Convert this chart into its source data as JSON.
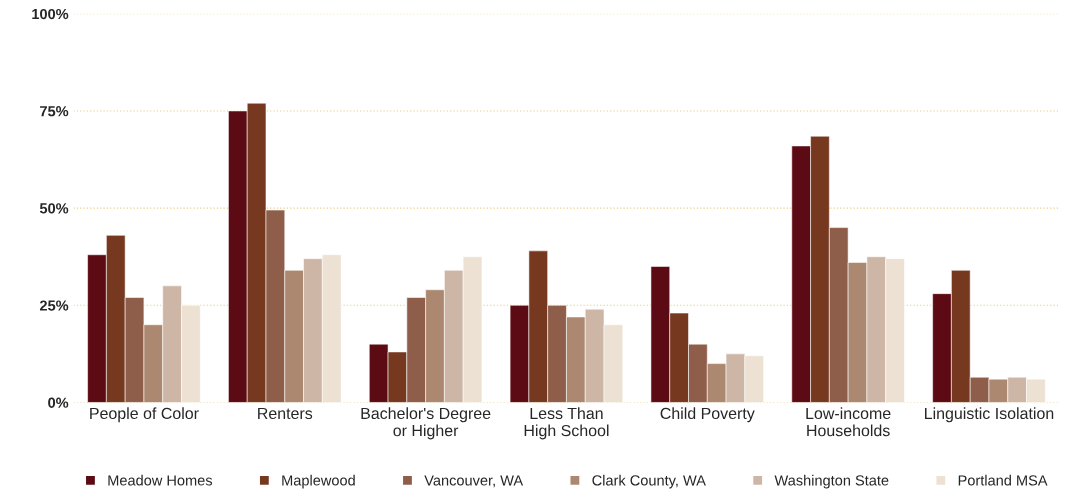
{
  "chart_data": {
    "type": "bar",
    "categories": [
      "People of Color",
      "Renters",
      "Bachelor's Degree\nor Higher",
      "Less Than\nHigh School",
      "Child Poverty",
      "Low-income\nHouseholds",
      "Linguistic Isolation"
    ],
    "series": [
      {
        "name": "Meadow Homes",
        "color": "#5c0a13",
        "values": [
          38,
          75,
          15,
          25,
          35,
          66,
          28
        ]
      },
      {
        "name": "Maplewood",
        "color": "#76381f",
        "values": [
          43,
          77,
          13,
          39,
          23,
          68.5,
          34
        ]
      },
      {
        "name": "Vancouver, WA",
        "color": "#8f5e4a",
        "values": [
          27,
          49.5,
          27,
          25,
          15,
          45,
          6.5
        ]
      },
      {
        "name": "Clark County, WA",
        "color": "#ad8870",
        "values": [
          20,
          34,
          29,
          22,
          10,
          36,
          6
        ]
      },
      {
        "name": "Washington State",
        "color": "#cdb6a6",
        "values": [
          30,
          37,
          34,
          24,
          12.5,
          37.5,
          6.5
        ]
      },
      {
        "name": "Portland MSA",
        "color": "#ece1d2",
        "values": [
          25,
          38,
          37.5,
          20,
          12,
          37,
          6
        ]
      }
    ],
    "ylim": [
      0,
      100
    ],
    "yticks": [
      {
        "value": 0,
        "label": "0%"
      },
      {
        "value": 25,
        "label": "25%"
      },
      {
        "value": 50,
        "label": "50%"
      },
      {
        "value": 75,
        "label": "75%"
      },
      {
        "value": 100,
        "label": "100%"
      }
    ],
    "grid": "y",
    "legend": "bottom"
  }
}
